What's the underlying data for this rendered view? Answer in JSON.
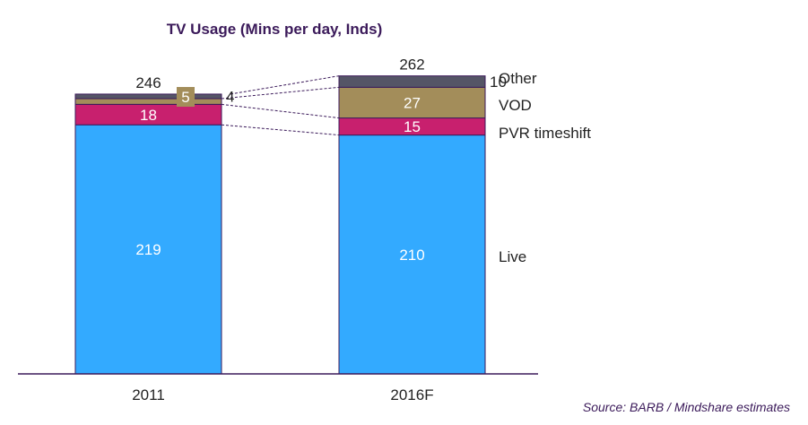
{
  "chart_data": {
    "type": "bar",
    "stacked": true,
    "title": "TV Usage (Mins per day, Inds)",
    "categories": [
      "2011",
      "2016F"
    ],
    "totals": [
      "246",
      "262"
    ],
    "series": [
      {
        "name": "Live",
        "values": [
          219,
          210
        ],
        "color": "#33aaff",
        "labels": [
          "219",
          "210"
        ]
      },
      {
        "name": "PVR timeshift",
        "values": [
          18,
          15
        ],
        "color": "#c8206e",
        "labels": [
          "18",
          "15"
        ]
      },
      {
        "name": "VOD",
        "values": [
          5,
          27
        ],
        "color": "#a38d5a",
        "labels": [
          "5",
          "27"
        ]
      },
      {
        "name": "Other",
        "values": [
          4,
          10
        ],
        "color": "#555566",
        "labels": [
          "4",
          "10"
        ]
      }
    ],
    "legend": [
      "Other",
      "VOD",
      "PVR timeshift",
      "Live"
    ],
    "source": "Source: BARB / Mindshare estimates"
  }
}
